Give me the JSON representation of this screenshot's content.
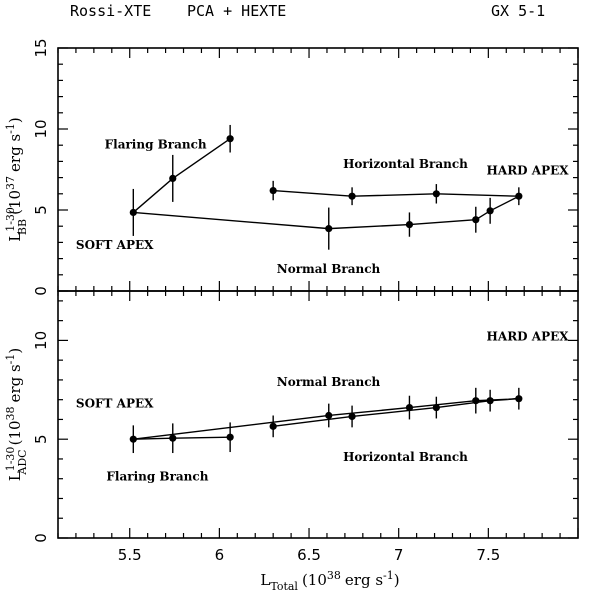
{
  "header": {
    "left": "Rossi-XTE",
    "middle": "PCA + HEXTE",
    "right": "GX 5-1"
  },
  "chart_data": [
    {
      "panel": "top",
      "type": "scatter",
      "xlim": [
        5.1,
        8.0
      ],
      "ylim": [
        0,
        15
      ],
      "x_ticks": [
        5.5,
        6,
        6.5,
        7,
        7.5
      ],
      "y_ticks": [
        0,
        5,
        10,
        15
      ],
      "ylabel": {
        "main": "L",
        "sup": "1-30",
        "sub": "BB",
        "units": "(10",
        "units_exp": "37",
        "units_rest": "erg s",
        "units_rest_exp": "-1",
        "units_close": ")"
      },
      "points": [
        {
          "x": 5.52,
          "y": 4.85,
          "err": 1.45
        },
        {
          "x": 5.74,
          "y": 6.95,
          "err": 1.45
        },
        {
          "x": 6.06,
          "y": 9.4,
          "err": 0.85
        },
        {
          "x": 6.3,
          "y": 6.2,
          "err": 0.6
        },
        {
          "x": 6.74,
          "y": 5.85,
          "err": 0.55
        },
        {
          "x": 7.21,
          "y": 6.0,
          "err": 0.6
        },
        {
          "x": 7.67,
          "y": 5.85,
          "err": 0.55
        },
        {
          "x": 7.51,
          "y": 4.95,
          "err": 0.8
        },
        {
          "x": 7.43,
          "y": 4.4,
          "err": 0.8
        },
        {
          "x": 7.06,
          "y": 4.1,
          "err": 0.75
        },
        {
          "x": 6.61,
          "y": 3.85,
          "err": 1.3
        }
      ],
      "path": [
        [
          5.52,
          4.85
        ],
        [
          5.74,
          6.95
        ],
        [
          6.06,
          9.4
        ]
      ],
      "path2": [
        [
          6.3,
          6.2
        ],
        [
          6.74,
          5.85
        ],
        [
          7.21,
          6.0
        ],
        [
          7.67,
          5.85
        ],
        [
          7.51,
          4.95
        ],
        [
          7.43,
          4.4
        ],
        [
          7.06,
          4.1
        ],
        [
          6.61,
          3.85
        ],
        [
          5.52,
          4.85
        ]
      ],
      "annotations": [
        {
          "text": "Flaring Branch",
          "x": 5.36,
          "y": 8.8
        },
        {
          "text": "Horizontal Branch",
          "x": 6.69,
          "y": 7.6
        },
        {
          "text": "HARD APEX",
          "x": 7.49,
          "y": 7.2
        },
        {
          "text": "SOFT APEX",
          "x": 5.2,
          "y": 2.6
        },
        {
          "text": "Normal Branch",
          "x": 6.32,
          "y": 1.1
        }
      ]
    },
    {
      "panel": "bottom",
      "type": "scatter",
      "xlim": [
        5.1,
        8.0
      ],
      "ylim": [
        0,
        12.5
      ],
      "x_ticks": [
        5.5,
        6,
        6.5,
        7,
        7.5
      ],
      "x_tick_labels": [
        "5.5",
        "6",
        "6.5",
        "7",
        "7.5"
      ],
      "y_ticks": [
        0,
        5,
        10
      ],
      "xlabel": {
        "main": "L",
        "sub": "Total",
        "units": "(10",
        "units_exp": "38",
        "units_rest": "erg s",
        "units_rest_exp": "-1",
        "units_close": ")"
      },
      "ylabel": {
        "main": "L",
        "sup": "1-30",
        "sub": "ADC",
        "units": "(10",
        "units_exp": "38",
        "units_rest": "erg s",
        "units_rest_exp": "-1",
        "units_close": ")"
      },
      "points": [
        {
          "x": 5.52,
          "y": 5.0,
          "err": 0.7
        },
        {
          "x": 5.74,
          "y": 5.05,
          "err": 0.75
        },
        {
          "x": 6.06,
          "y": 5.1,
          "err": 0.75
        },
        {
          "x": 6.3,
          "y": 5.65,
          "err": 0.55
        },
        {
          "x": 6.61,
          "y": 6.2,
          "err": 0.6
        },
        {
          "x": 6.74,
          "y": 6.15,
          "err": 0.55
        },
        {
          "x": 7.06,
          "y": 6.6,
          "err": 0.6
        },
        {
          "x": 7.21,
          "y": 6.6,
          "err": 0.55
        },
        {
          "x": 7.43,
          "y": 6.95,
          "err": 0.65
        },
        {
          "x": 7.51,
          "y": 6.95,
          "err": 0.55
        },
        {
          "x": 7.67,
          "y": 7.05,
          "err": 0.55
        }
      ],
      "path": [
        [
          5.52,
          5.0
        ],
        [
          5.74,
          5.05
        ],
        [
          6.06,
          5.1
        ]
      ],
      "path2": [
        [
          5.52,
          5.0
        ],
        [
          6.61,
          6.2
        ],
        [
          7.06,
          6.6
        ],
        [
          7.43,
          6.95
        ],
        [
          7.67,
          7.05
        ],
        [
          7.51,
          6.95
        ],
        [
          7.21,
          6.6
        ],
        [
          6.74,
          6.15
        ],
        [
          6.3,
          5.65
        ]
      ],
      "annotations": [
        {
          "text": "HARD APEX",
          "x": 7.49,
          "y": 10.0
        },
        {
          "text": "Normal Branch",
          "x": 6.32,
          "y": 7.7
        },
        {
          "text": "SOFT APEX",
          "x": 5.2,
          "y": 6.6
        },
        {
          "text": "Horizontal Branch",
          "x": 6.69,
          "y": 3.9
        },
        {
          "text": "Flaring Branch",
          "x": 5.37,
          "y": 2.9
        }
      ]
    }
  ]
}
